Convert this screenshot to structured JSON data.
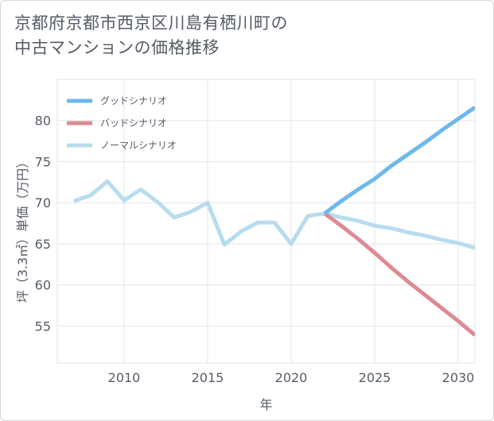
{
  "title_lines": [
    "京都府京都市西京区川島有栖川町の",
    "中古マンションの価格推移"
  ],
  "chart_data": {
    "type": "line",
    "title": "京都府京都市西京区川島有栖川町の中古マンションの価格推移",
    "xlabel": "年",
    "ylabel": "坪（3.3㎡）単価（万円）",
    "xlim": [
      2006,
      2031
    ],
    "ylim": [
      50.5,
      85
    ],
    "xticks": [
      2010,
      2015,
      2020,
      2025,
      2030
    ],
    "yticks": [
      55,
      60,
      65,
      70,
      75,
      80
    ],
    "legend_position": "top-left",
    "series": [
      {
        "name": "グッドシナリオ",
        "color": "#6cb9ec",
        "x": [
          2022,
          2023,
          2024,
          2025,
          2026,
          2027,
          2028,
          2029,
          2030,
          2031
        ],
        "y": [
          68.7,
          70.2,
          71.6,
          72.9,
          74.5,
          75.9,
          77.3,
          78.8,
          80.2,
          81.6
        ]
      },
      {
        "name": "バッドシナリオ",
        "color": "#dc8b94",
        "x": [
          2022,
          2023,
          2024,
          2025,
          2026,
          2027,
          2028,
          2029,
          2030,
          2031
        ],
        "y": [
          68.7,
          67.2,
          65.6,
          63.9,
          62.1,
          60.4,
          58.8,
          57.2,
          55.6,
          53.9
        ]
      },
      {
        "name": "ノーマルシナリオ",
        "color": "#b8dcee",
        "x": [
          2007,
          2008,
          2009,
          2010,
          2011,
          2012,
          2013,
          2014,
          2015,
          2016,
          2017,
          2018,
          2019,
          2020,
          2021,
          2022,
          2023,
          2024,
          2025,
          2026,
          2027,
          2028,
          2029,
          2030,
          2031
        ],
        "y": [
          70.2,
          70.9,
          72.6,
          70.3,
          71.6,
          70.1,
          68.2,
          68.9,
          70.0,
          64.9,
          66.5,
          67.6,
          67.6,
          65.0,
          68.4,
          68.7,
          68.2,
          67.8,
          67.2,
          66.9,
          66.4,
          66.0,
          65.5,
          65.1,
          64.5
        ]
      }
    ]
  }
}
